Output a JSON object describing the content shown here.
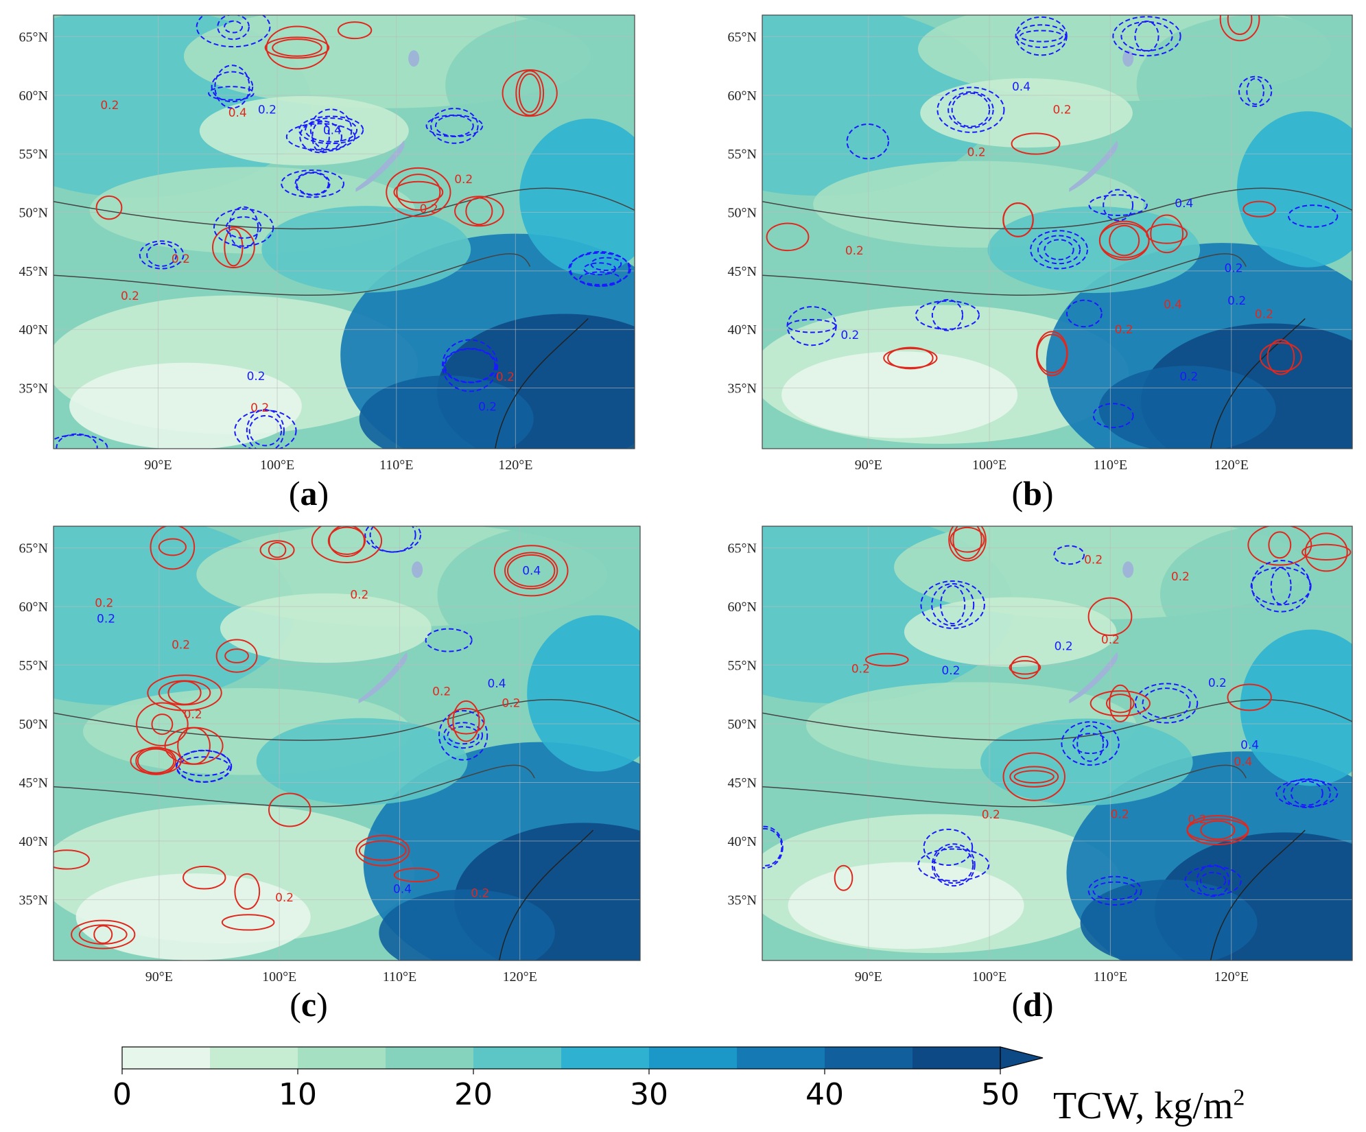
{
  "panels": [
    {
      "id": "a",
      "label": "a",
      "contour_labels": [
        {
          "text": "0.2",
          "c": "b"
        },
        {
          "text": "0.2",
          "c": "r"
        },
        {
          "text": "0.2",
          "c": "r"
        },
        {
          "text": "0.2",
          "c": "b"
        },
        {
          "text": "0.4",
          "c": "b"
        },
        {
          "text": "0.4",
          "c": "r"
        },
        {
          "text": "0.2",
          "c": "r"
        },
        {
          "text": "0.2",
          "c": "r"
        },
        {
          "text": "0.2",
          "c": "r"
        },
        {
          "text": "0.2",
          "c": "b"
        },
        {
          "text": "0.2",
          "c": "r"
        },
        {
          "text": "0.2",
          "c": "r"
        }
      ]
    },
    {
      "id": "b",
      "label": "b",
      "contour_labels": [
        {
          "text": "0.4",
          "c": "b"
        },
        {
          "text": "0.2",
          "c": "b"
        },
        {
          "text": "0.2",
          "c": "r"
        },
        {
          "text": "0.2",
          "c": "r"
        },
        {
          "text": "0.2",
          "c": "b"
        },
        {
          "text": "0.4",
          "c": "r"
        },
        {
          "text": "0.2",
          "c": "b"
        },
        {
          "text": "0.2",
          "c": "r"
        },
        {
          "text": "0.4",
          "c": "b"
        },
        {
          "text": "0.2",
          "c": "b"
        },
        {
          "text": "0.2",
          "c": "r"
        },
        {
          "text": "0.2",
          "c": "r"
        }
      ]
    },
    {
      "id": "c",
      "label": "c",
      "contour_labels": [
        {
          "text": "0.4",
          "c": "b"
        },
        {
          "text": "0.2",
          "c": "r"
        },
        {
          "text": "0.2",
          "c": "r"
        },
        {
          "text": "0.2",
          "c": "r"
        },
        {
          "text": "0.2",
          "c": "r"
        },
        {
          "text": "0.4",
          "c": "b"
        },
        {
          "text": "0.2",
          "c": "b"
        },
        {
          "text": "0.2",
          "c": "r"
        },
        {
          "text": "0.2",
          "c": "r"
        },
        {
          "text": "0.4",
          "c": "b"
        },
        {
          "text": "0.2",
          "c": "r"
        },
        {
          "text": "0.2",
          "c": "r"
        }
      ]
    },
    {
      "id": "d",
      "label": "d",
      "contour_labels": [
        {
          "text": "0.2",
          "c": "b"
        },
        {
          "text": "0.2",
          "c": "r"
        },
        {
          "text": "0.2",
          "c": "r"
        },
        {
          "text": "0.2",
          "c": "r"
        },
        {
          "text": "0.4",
          "c": "r"
        },
        {
          "text": "0.4",
          "c": "b"
        },
        {
          "text": "0.2",
          "c": "r"
        },
        {
          "text": "0.2",
          "c": "b"
        },
        {
          "text": "0.2",
          "c": "b"
        },
        {
          "text": "0.2",
          "c": "r"
        },
        {
          "text": "0.2",
          "c": "r"
        },
        {
          "text": "0.2",
          "c": "r"
        }
      ]
    }
  ],
  "axes": {
    "lat_labels": [
      "65°N",
      "60°N",
      "55°N",
      "50°N",
      "45°N",
      "40°N",
      "35°N"
    ],
    "lon_labels": [
      "90°E",
      "100°E",
      "110°E",
      "120°E"
    ]
  },
  "colorbar": {
    "ticks": [
      "0",
      "10",
      "20",
      "30",
      "40",
      "50"
    ],
    "colors": [
      "#e6f6ea",
      "#c6ecd1",
      "#a6e0c2",
      "#86d3bd",
      "#5cc6c6",
      "#2fb2d2",
      "#1b97c8",
      "#157ab4",
      "#11609d",
      "#0d4a85"
    ],
    "title_main": "TCW, kg/m",
    "title_sup": "2"
  },
  "palette": {
    "contour_pos": "#e0281e",
    "contour_neg": "#1a1aff",
    "border": "#444444",
    "lake": "#9fb5d8"
  }
}
